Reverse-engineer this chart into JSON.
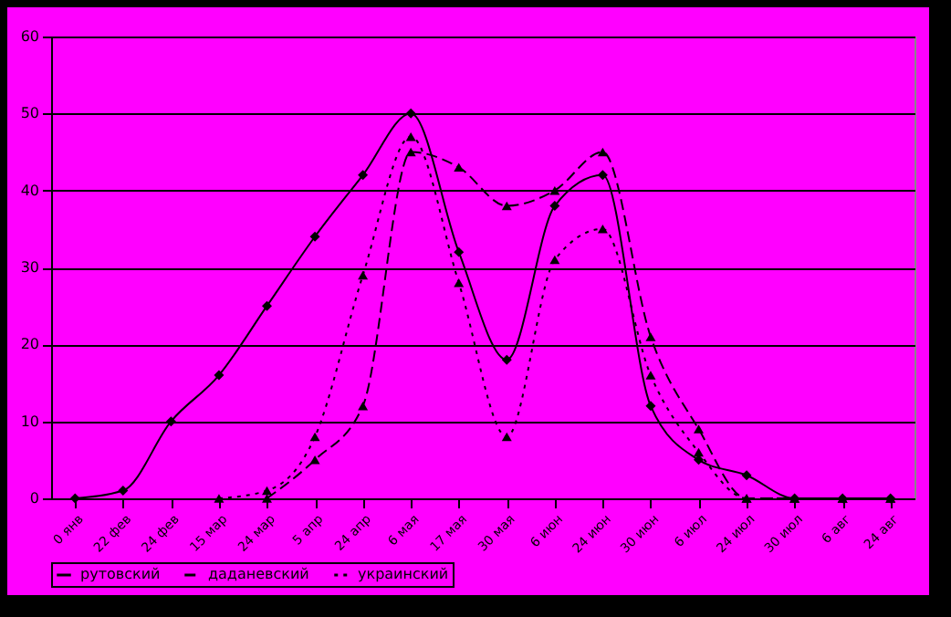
{
  "chart_data": {
    "type": "line",
    "categories": [
      "0 янв",
      "22 фев",
      "24 фев",
      "15 мар",
      "24 мар",
      "5 апр",
      "24 апр",
      "6 мая",
      "17 мая",
      "30 мая",
      "6 июн",
      "24 июн",
      "30 июн",
      "6 июл",
      "24 июл",
      "30 июл",
      "6 авг",
      "24 авг"
    ],
    "series": [
      {
        "name": "рутовский",
        "color": "#000000",
        "marker": "diamond",
        "line_style": "solid",
        "values": [
          0,
          1,
          10,
          16,
          25,
          34,
          42,
          50,
          32,
          18,
          38,
          42,
          12,
          5,
          3,
          0,
          0,
          0
        ]
      },
      {
        "name": "даданевский",
        "color": "#000000",
        "marker": "triangle",
        "line_style": "dashed",
        "values": [
          null,
          null,
          null,
          null,
          0,
          5,
          12,
          45,
          43,
          38,
          40,
          45,
          21,
          9,
          0,
          0,
          0,
          0
        ]
      },
      {
        "name": "украинский",
        "color": "#000000",
        "marker": "triangle",
        "line_style": "dotted",
        "values": [
          null,
          null,
          null,
          0,
          1,
          8,
          29,
          47,
          28,
          8,
          31,
          35,
          16,
          6,
          0,
          0,
          0,
          0
        ]
      }
    ],
    "ylim": [
      0,
      60
    ],
    "yticks": [
      0,
      10,
      20,
      30,
      40,
      50,
      60
    ],
    "grid": "y",
    "legend": "bottom"
  }
}
